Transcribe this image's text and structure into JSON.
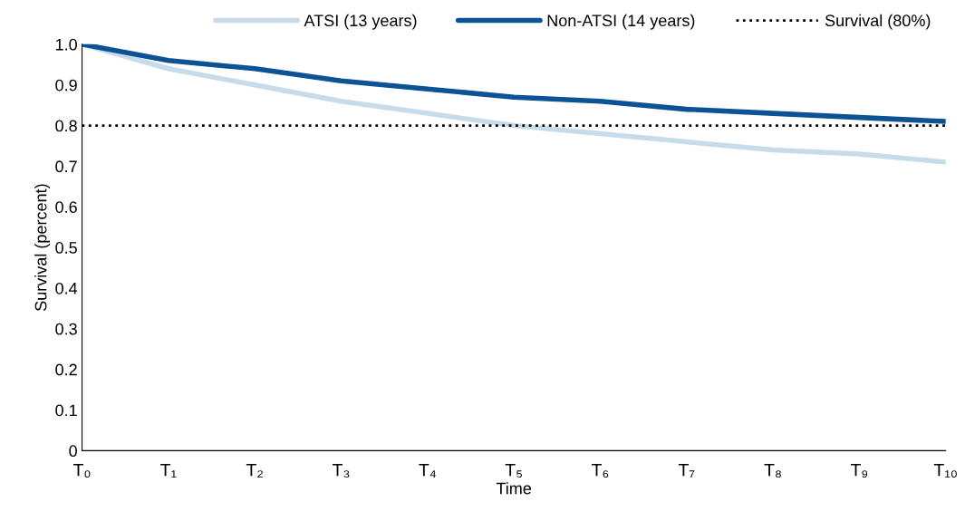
{
  "chart_data": {
    "type": "line",
    "xlabel": "Time",
    "ylabel": "Survival (percent)",
    "categories": [
      "T₀",
      "T₁",
      "T₂",
      "T₃",
      "T₄",
      "T₅",
      "T₆",
      "T₇",
      "T₈",
      "T₉",
      "T₁₀"
    ],
    "series": [
      {
        "name": "ATSI (13 years)",
        "color": "#c7dbe8",
        "values": [
          1.0,
          0.94,
          0.9,
          0.86,
          0.83,
          0.8,
          0.78,
          0.76,
          0.74,
          0.73,
          0.71
        ]
      },
      {
        "name": "Non-ATSI (14 years)",
        "color": "#0b5394",
        "values": [
          1.0,
          0.96,
          0.94,
          0.91,
          0.89,
          0.87,
          0.86,
          0.84,
          0.83,
          0.82,
          0.81
        ]
      }
    ],
    "ref_lines": [
      {
        "axis": "y",
        "value": 0.8,
        "label": "Survival (80%)",
        "color": "#000000",
        "line_style": "dotted"
      }
    ],
    "ylim": [
      0,
      1.0
    ],
    "yticks": [
      {
        "value": 0,
        "label": "0"
      },
      0.1,
      0.2,
      0.3,
      0.4,
      0.5,
      0.6,
      0.7,
      0.8,
      0.9,
      {
        "value": 1.0,
        "label": "1.0"
      }
    ],
    "grid": false,
    "legend": "top right",
    "marker": "none",
    "line_style": "solid"
  }
}
